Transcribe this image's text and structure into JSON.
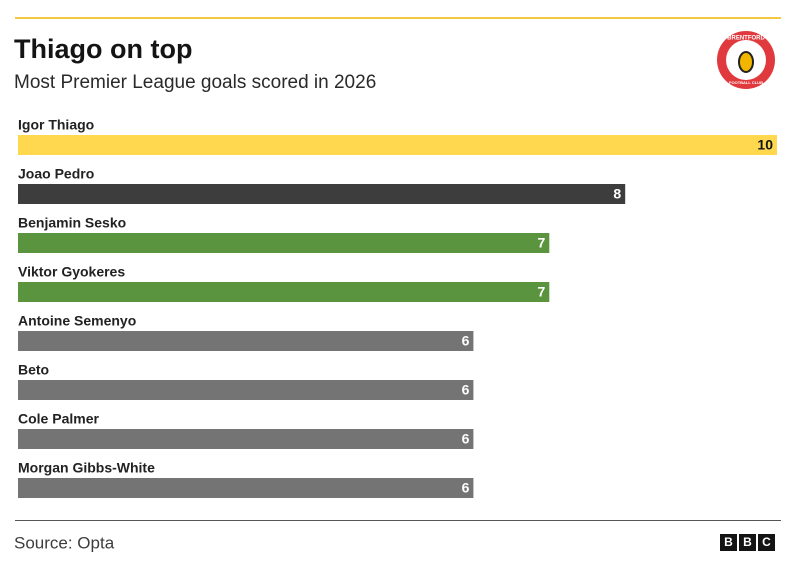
{
  "chart_data": {
    "type": "bar",
    "orientation": "horizontal",
    "title": "Thiago on top",
    "subtitle": "Most Premier League goals scored in 2026",
    "categories": [
      "Igor Thiago",
      "Joao Pedro",
      "Benjamin Sesko",
      "Viktor Gyokeres",
      "Antoine Semenyo",
      "Beto",
      "Cole Palmer",
      "Morgan Gibbs-White"
    ],
    "values": [
      10,
      8,
      7,
      7,
      6,
      6,
      6,
      6
    ],
    "colors": [
      "#ffd84f",
      "#3d3d3d",
      "#5a943f",
      "#5a943f",
      "#747474",
      "#747474",
      "#747474",
      "#747474"
    ],
    "xlim": [
      0,
      10
    ],
    "source": "Source: Opta",
    "badge": {
      "top": "BRENTFORD",
      "bottom": "FOOTBALL CLUB"
    },
    "logo": [
      "B",
      "B",
      "C"
    ]
  }
}
